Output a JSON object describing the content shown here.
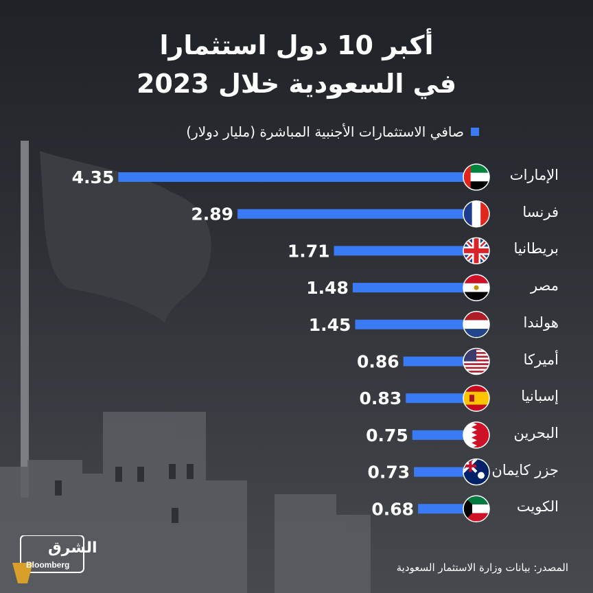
{
  "title": {
    "line1": "أكبر 10 دول استثمارا",
    "line2": "في السعودية خلال 2023"
  },
  "legend": {
    "label": "صافي الاستثمارات الأجنبية المباشرة (مليار دولار)",
    "color": "#3a7bf5"
  },
  "source": "المصدر: بيانات وزارة الاستثمار السعودية",
  "logo": {
    "main": "الشرق",
    "sub": "Bloomberg"
  },
  "colors": {
    "bar": "#3a7bf5",
    "text": "#ffffff",
    "background": "#2a2d33"
  },
  "chart_data": {
    "type": "bar",
    "orientation": "horizontal",
    "categories": [
      "الإمارات",
      "فرنسا",
      "بريطانيا",
      "مصر",
      "هولندا",
      "أميركا",
      "إسبانيا",
      "البحرين",
      "جزر كايمان",
      "الكويت"
    ],
    "values": [
      4.35,
      2.89,
      1.71,
      1.48,
      1.45,
      0.86,
      0.83,
      0.75,
      0.73,
      0.68
    ],
    "value_labels": [
      "4.35",
      "2.89",
      "1.71",
      "1.48",
      "1.45",
      "0.86",
      "0.83",
      "0.75",
      "0.73",
      "0.68"
    ],
    "flags": [
      "uae-flag-icon",
      "france-flag-icon",
      "uk-flag-icon",
      "egypt-flag-icon",
      "netherlands-flag-icon",
      "usa-flag-icon",
      "spain-flag-icon",
      "bahrain-flag-icon",
      "cayman-flag-icon",
      "kuwait-flag-icon"
    ],
    "grid": false,
    "legend_position": "top-right"
  }
}
